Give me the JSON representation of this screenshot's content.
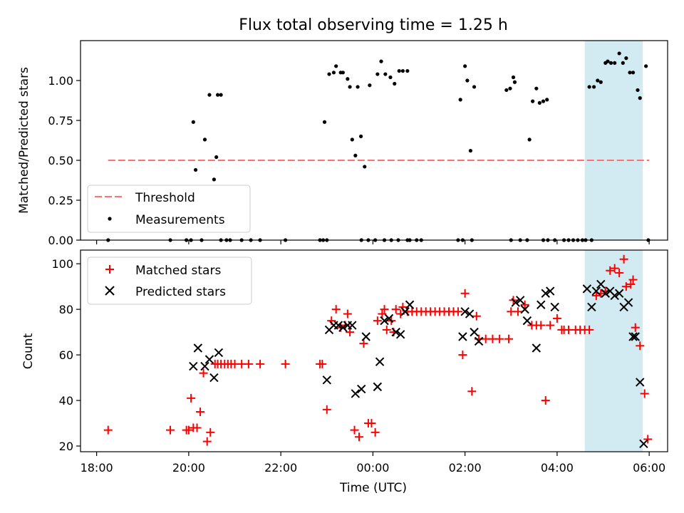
{
  "chart_data": {
    "type": "scatter",
    "title": "Flux total observing time = 1.25 h",
    "xlabel": "Time (UTC)",
    "x_unit": "hours since 18:00 UTC",
    "xlim": [
      -0.35,
      12.4
    ],
    "x_ticks": [
      0,
      2,
      4,
      6,
      8,
      10,
      12
    ],
    "x_tick_labels": [
      "18:00",
      "20:00",
      "22:00",
      "00:00",
      "02:00",
      "04:00",
      "06:00"
    ],
    "highlight_span": [
      10.6,
      11.86
    ],
    "highlight_color": "#add8e6",
    "panels": [
      {
        "name": "ratio",
        "ylabel": "Matched/Predicted stars",
        "ylim": [
          0,
          1.25
        ],
        "y_ticks": [
          0,
          0.25,
          0.5,
          0.75,
          1.0
        ],
        "y_tick_labels": [
          "0.00",
          "0.25",
          "0.50",
          "0.75",
          "1.00"
        ],
        "threshold": {
          "name": "Threshold",
          "value": 0.5,
          "x_range": [
            0.25,
            12
          ],
          "color": "#ff7070"
        },
        "legend": [
          "Threshold",
          "Measurements"
        ],
        "measurements": {
          "name": "Measurements",
          "color": "#000000",
          "x": [
            0.25,
            1.6,
            1.95,
            2.05,
            2.28,
            2.7,
            2.82,
            2.9,
            3.15,
            3.35,
            3.55,
            4.1,
            4.85,
            4.92,
            5.0,
            5.75,
            5.9,
            6.05,
            6.25,
            6.4,
            6.55,
            6.75,
            6.8,
            6.95,
            7.05,
            7.85,
            7.95,
            8.15,
            9.0,
            9.2,
            9.35,
            9.7,
            9.8,
            9.95,
            10.15,
            10.25,
            10.35,
            10.45,
            10.55,
            10.62,
            10.75,
            11.98,
            2.1,
            2.15,
            2.35,
            2.45,
            2.55,
            2.6,
            2.63,
            2.7,
            4.95,
            5.05,
            5.15,
            5.2,
            5.3,
            5.35,
            5.45,
            5.5,
            5.55,
            5.62,
            5.67,
            5.74,
            5.82,
            5.93,
            6.1,
            6.18,
            6.27,
            6.38,
            6.47,
            6.57,
            6.65,
            6.75,
            7.9,
            8.0,
            8.05,
            8.12,
            8.2,
            8.9,
            8.98,
            9.05,
            9.08,
            9.4,
            9.47,
            9.55,
            9.62,
            9.7,
            9.78,
            10.7,
            10.8,
            10.88,
            10.95,
            11.05,
            11.1,
            11.17,
            11.25,
            11.35,
            11.43,
            11.5,
            11.58,
            11.65,
            11.75,
            11.8,
            11.93
          ],
          "y": [
            0,
            0,
            0,
            0,
            0,
            0,
            0,
            0,
            0,
            0,
            0,
            0,
            0,
            0,
            0,
            0,
            0,
            0,
            0,
            0,
            0,
            0,
            0,
            0,
            0,
            0,
            0,
            0,
            0,
            0,
            0,
            0,
            0,
            0,
            0,
            0,
            0,
            0,
            0,
            0,
            0,
            0,
            0.74,
            0.44,
            0.63,
            0.91,
            0.38,
            0.52,
            0.91,
            0.91,
            0.74,
            1.04,
            1.05,
            1.09,
            1.05,
            1.05,
            1.01,
            0.96,
            0.63,
            0.53,
            0.96,
            0.65,
            0.46,
            0.97,
            1.04,
            1.12,
            1.04,
            1.02,
            0.98,
            1.06,
            1.06,
            1.06,
            0.88,
            1.09,
            1.0,
            0.56,
            0.96,
            0.94,
            0.95,
            1.02,
            0.99,
            0.63,
            0.87,
            0.95,
            0.86,
            0.87,
            0.88,
            0.96,
            0.96,
            1.0,
            0.99,
            1.11,
            1.12,
            1.11,
            1.11,
            1.17,
            1.11,
            1.14,
            1.05,
            1.05,
            0.94,
            0.89,
            1.09
          ]
        }
      },
      {
        "name": "counts",
        "ylabel": "Count",
        "ylim": [
          17.5,
          106
        ],
        "y_ticks": [
          20,
          40,
          60,
          80,
          100
        ],
        "y_tick_labels": [
          "20",
          "40",
          "60",
          "80",
          "100"
        ],
        "legend": [
          "Matched stars",
          "Predicted stars"
        ],
        "series": [
          {
            "name": "Matched stars",
            "marker": "plus",
            "color": "#ff0000",
            "x": [
              0.25,
              1.6,
              1.95,
              2.0,
              2.05,
              2.1,
              2.18,
              2.25,
              2.32,
              2.4,
              2.47,
              2.57,
              2.63,
              2.7,
              2.78,
              2.85,
              2.92,
              3.0,
              3.15,
              3.3,
              3.55,
              4.1,
              4.85,
              4.9,
              5.0,
              5.1,
              5.2,
              5.3,
              5.4,
              5.45,
              5.5,
              5.6,
              5.7,
              5.8,
              5.9,
              5.97,
              6.05,
              6.1,
              6.2,
              6.25,
              6.3,
              6.4,
              6.45,
              6.5,
              6.6,
              6.65,
              6.75,
              6.85,
              6.95,
              7.05,
              7.15,
              7.25,
              7.35,
              7.45,
              7.55,
              7.65,
              7.75,
              7.85,
              7.95,
              8.0,
              8.15,
              8.25,
              8.3,
              8.45,
              8.6,
              8.75,
              8.95,
              9.0,
              9.05,
              9.15,
              9.3,
              9.45,
              9.55,
              9.65,
              9.75,
              9.85,
              10.0,
              10.1,
              10.15,
              10.25,
              10.4,
              10.5,
              10.6,
              10.7,
              10.85,
              10.95,
              11.05,
              11.15,
              11.25,
              11.35,
              11.45,
              11.5,
              11.6,
              11.65,
              11.7,
              11.8,
              11.9,
              11.97
            ],
            "y": [
              27,
              27,
              27,
              27,
              41,
              28,
              28,
              35,
              52,
              22,
              26,
              56,
              56,
              56,
              56,
              56,
              56,
              56,
              56,
              56,
              56,
              56,
              56,
              56,
              36,
              75,
              80,
              72,
              73,
              78,
              70,
              27,
              24,
              65,
              30,
              30,
              26,
              75,
              78,
              80,
              71,
              75,
              70,
              80,
              78,
              81,
              79,
              79,
              79,
              79,
              79,
              79,
              79,
              79,
              79,
              79,
              79,
              79,
              60,
              87,
              44,
              77,
              67,
              67,
              67,
              67,
              67,
              79,
              84,
              79,
              82,
              73,
              73,
              73,
              40,
              73,
              76,
              71,
              71,
              71,
              71,
              71,
              71,
              71,
              86,
              87,
              88,
              97,
              98,
              96,
              102,
              90,
              91,
              93,
              72,
              64,
              43,
              23
            ]
          },
          {
            "name": "Predicted stars",
            "marker": "x",
            "color": "#000000",
            "x": [
              2.1,
              2.2,
              2.35,
              2.45,
              2.55,
              2.65,
              5.0,
              5.05,
              5.15,
              5.25,
              5.35,
              5.45,
              5.55,
              5.62,
              5.75,
              5.85,
              6.1,
              6.15,
              6.25,
              6.35,
              6.5,
              6.6,
              6.7,
              6.8,
              7.95,
              8.0,
              8.1,
              8.2,
              8.3,
              9.1,
              9.2,
              9.3,
              9.35,
              9.55,
              9.65,
              9.75,
              9.85,
              9.95,
              10.65,
              10.75,
              10.85,
              10.95,
              11.05,
              11.15,
              11.25,
              11.35,
              11.45,
              11.55,
              11.65,
              11.7,
              11.8,
              11.88
            ],
            "y": [
              55,
              63,
              55,
              58,
              50,
              61,
              49,
              71,
              73,
              73,
              72,
              73,
              73,
              43,
              45,
              68,
              46,
              57,
              75,
              76,
              70,
              69,
              79,
              82,
              68,
              79,
              78,
              70,
              66,
              83,
              84,
              80,
              75,
              63,
              82,
              87,
              88,
              81,
              89,
              81,
              88,
              91,
              87,
              88,
              86,
              87,
              81,
              83,
              68,
              68,
              48,
              21
            ]
          }
        ]
      }
    ]
  }
}
